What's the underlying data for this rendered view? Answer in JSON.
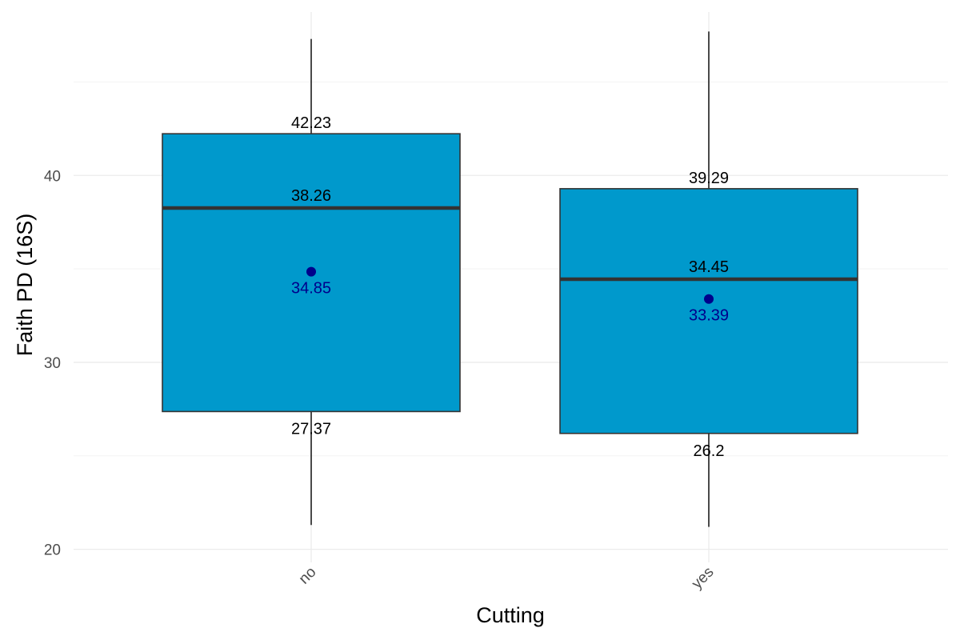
{
  "chart_data": {
    "type": "box",
    "xlabel": "Cutting",
    "ylabel": "Faith PD (16S)",
    "ylim": [
      19.3,
      48.1
    ],
    "y_ticks": [
      20,
      30,
      40
    ],
    "grid": true,
    "colors": {
      "box_fill": "#0099CC",
      "box_stroke": "#333333",
      "median": "#333333",
      "mean": "#00008B",
      "whisker": "#000000",
      "grid_major": "#EBEBEB",
      "grid_minor": "#F3F3F3"
    },
    "categories": [
      "no",
      "yes"
    ],
    "groups": [
      {
        "name": "no",
        "whisker_low": 21.3,
        "q1": 27.37,
        "median": 38.26,
        "q3": 42.23,
        "whisker_high": 47.3,
        "mean": 34.85,
        "q1_label": "27.37",
        "median_label": "38.26",
        "q3_label": "42.23",
        "mean_label": "34.85"
      },
      {
        "name": "yes",
        "whisker_low": 21.2,
        "q1": 26.2,
        "median": 34.45,
        "q3": 39.29,
        "whisker_high": 47.7,
        "mean": 33.39,
        "q1_label": "26.2",
        "median_label": "34.45",
        "q3_label": "39.29",
        "mean_label": "33.39"
      }
    ]
  }
}
